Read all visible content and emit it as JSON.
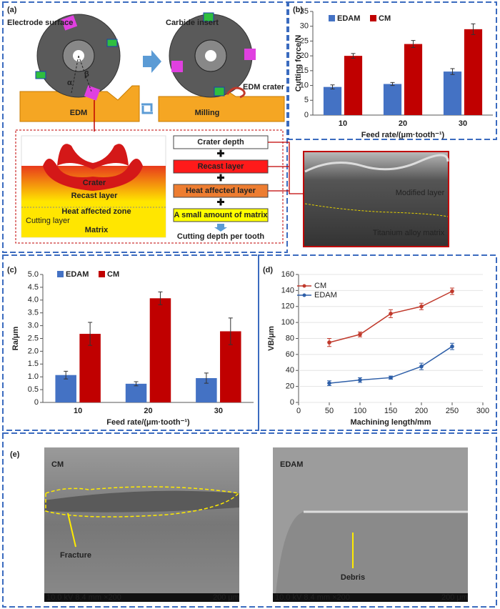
{
  "chart_data": [
    {
      "type": "bar",
      "label": "(b)",
      "ylabel": "Cutting force/N",
      "xlabel": "Feed rate/(μm·tooth⁻¹)",
      "categories": [
        "10",
        "20",
        "30"
      ],
      "series": [
        {
          "name": "EDAM",
          "color": "#4472c4",
          "values": [
            9.5,
            10.5,
            14.7
          ],
          "errors": [
            0.7,
            0.5,
            1.0
          ]
        },
        {
          "name": "CM",
          "color": "#c00000",
          "values": [
            20,
            24,
            29
          ],
          "errors": [
            0.8,
            1.2,
            1.8
          ]
        }
      ],
      "ylim": [
        0,
        35
      ],
      "yticks": [
        0,
        5,
        10,
        15,
        20,
        25,
        30,
        35
      ]
    },
    {
      "type": "bar",
      "label": "(c)",
      "ylabel": "Ra/μm",
      "xlabel": "Feed rate/(μm·tooth⁻¹)",
      "categories": [
        "10",
        "20",
        "30"
      ],
      "series": [
        {
          "name": "EDAM",
          "color": "#4472c4",
          "values": [
            1.07,
            0.73,
            0.95
          ],
          "errors": [
            0.15,
            0.08,
            0.2
          ]
        },
        {
          "name": "CM",
          "color": "#c00000",
          "values": [
            2.68,
            4.07,
            2.78
          ],
          "errors": [
            0.45,
            0.25,
            0.52
          ]
        }
      ],
      "ylim": [
        0,
        5
      ],
      "yticks": [
        0,
        0.5,
        {
          "value": 1,
          "label": "1.0"
        },
        1.5,
        {
          "value": 2,
          "label": "2.0"
        },
        2.5,
        {
          "value": 3,
          "label": "3.0"
        },
        3.5,
        {
          "value": 4,
          "label": "4.0"
        },
        4.5,
        {
          "value": 5,
          "label": "5.0"
        }
      ]
    },
    {
      "type": "line",
      "label": "(d)",
      "ylabel": "VB/μm",
      "xlabel": "Machining length/mm",
      "x": [
        50,
        100,
        150,
        200,
        250
      ],
      "series": [
        {
          "name": "CM",
          "color": "#c0392b",
          "values": [
            75,
            85,
            111,
            120,
            139
          ],
          "errors": [
            5,
            3,
            5,
            4,
            4
          ]
        },
        {
          "name": "EDAM",
          "color": "#2e5fa8",
          "values": [
            24,
            28,
            31,
            45,
            70
          ],
          "errors": [
            3,
            3,
            2,
            4,
            4
          ]
        }
      ],
      "xlim": [
        0,
        300
      ],
      "xticks": [
        0,
        50,
        100,
        150,
        200,
        250,
        300
      ],
      "ylim": [
        0,
        160
      ],
      "yticks": [
        0,
        20,
        40,
        60,
        80,
        100,
        120,
        140,
        160
      ]
    }
  ],
  "panel_a": {
    "label": "(a)",
    "electrode": "Electrode surface",
    "insert": "Carbide insert",
    "crater": "EDM crater",
    "alpha": "α",
    "beta": "β",
    "edm": "EDM",
    "milling": "Milling",
    "zones": {
      "crater": "Crater",
      "recast": "Recast layer",
      "haz": "Heat affected zone",
      "cutting": "Cutting layer",
      "matrix": "Matrix"
    },
    "flow": [
      "Crater depth",
      "Recast layer",
      "Heat affected layer",
      "A small amount of matrix"
    ],
    "result": "Cutting depth per tooth",
    "sem": {
      "modified": "Modified layer",
      "matrix": "Titanium alloy matrix"
    }
  },
  "panel_e": {
    "label": "(e)",
    "left": {
      "title": "CM",
      "note": "Fracture",
      "meta": "10.0 kV 8.4 mm ×200",
      "scale": "200 μm"
    },
    "right": {
      "title": "EDAM",
      "note": "Debris",
      "meta": "10.0 kV 8.4 mm ×200",
      "scale": "200 μm"
    }
  }
}
